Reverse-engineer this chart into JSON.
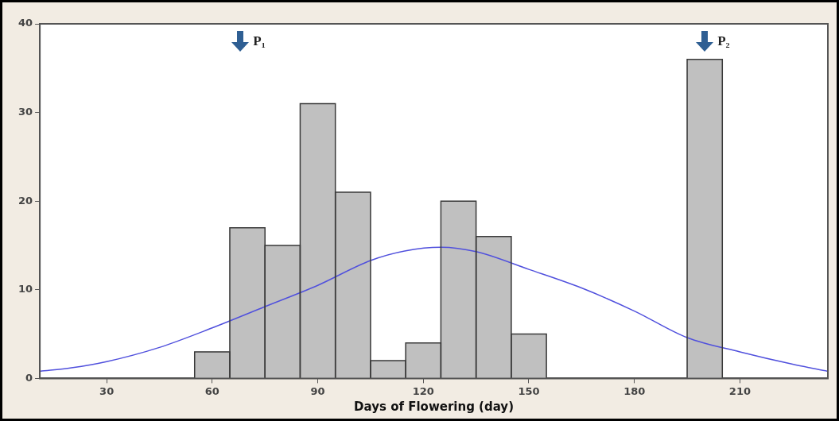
{
  "chart_data": {
    "type": "histogram",
    "xlabel": "Days of Flowering (day)",
    "bins": [
      55,
      65,
      75,
      85,
      95,
      105,
      115,
      125,
      135,
      145,
      155,
      165,
      175,
      185,
      195,
      205
    ],
    "values": [
      3,
      17,
      15,
      31,
      21,
      2,
      4,
      20,
      16,
      5,
      0,
      0,
      0,
      0,
      36
    ],
    "color": "#c0c0c0",
    "series": [
      {
        "type": "line",
        "color": "#5050dd",
        "x": [
          11,
          20,
          30,
          45,
          60,
          75,
          90,
          105,
          115,
          125,
          135,
          150,
          165,
          180,
          195,
          210,
          225,
          235
        ],
        "values": [
          0.8,
          1.2,
          1.9,
          3.5,
          5.7,
          8.1,
          10.5,
          13.3,
          14.4,
          14.8,
          14.3,
          12.3,
          10.2,
          7.6,
          4.6,
          3.0,
          1.6,
          0.8
        ]
      }
    ],
    "xlim": [
      11,
      235
    ],
    "xticks": [
      30,
      60,
      90,
      120,
      150,
      180,
      210
    ],
    "ylim": [
      0,
      40
    ],
    "yticks": [
      0,
      10,
      20,
      30,
      40
    ],
    "grid": false,
    "legend": false,
    "marker": "none",
    "annotations": [
      {
        "text": "P₁",
        "x": 68,
        "y": 38
      },
      {
        "text": "P₂",
        "x": 200,
        "y": 38
      }
    ]
  }
}
